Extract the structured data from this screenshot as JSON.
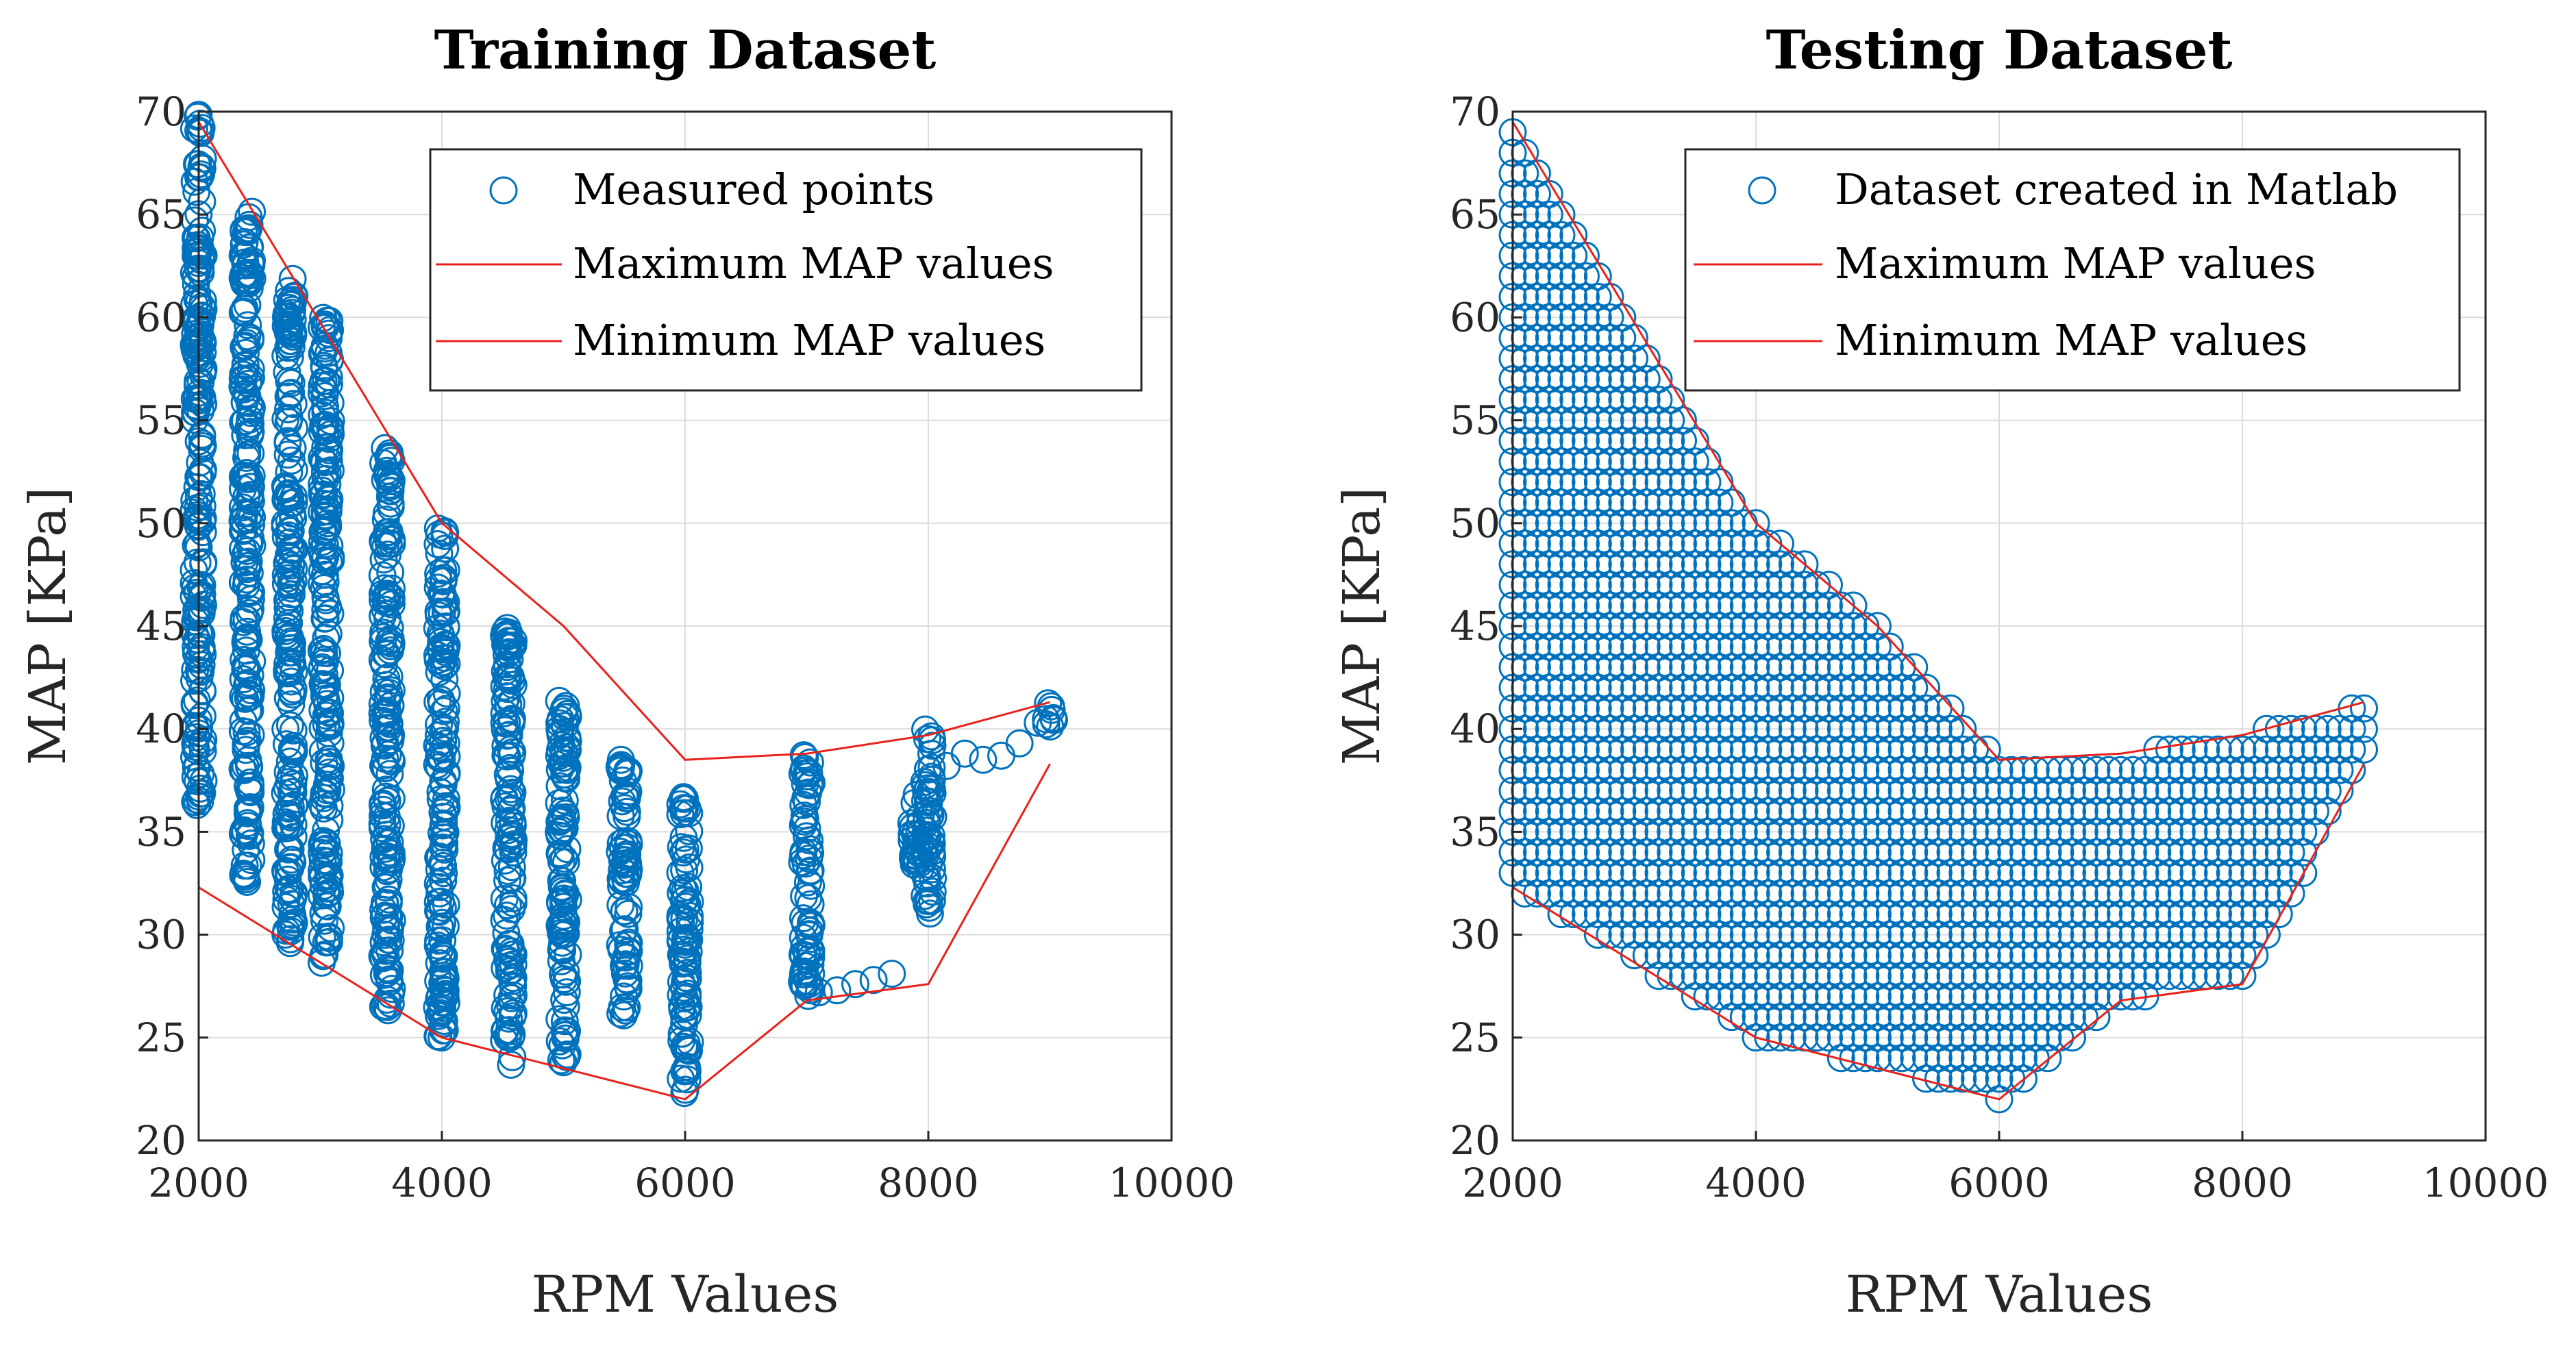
{
  "colors": {
    "marker": "#0072BD",
    "boundary": "#e8221a",
    "grid": "#dcdcdc",
    "axis": "#262626"
  },
  "chart_data": [
    {
      "type": "scatter",
      "title": "Training Dataset",
      "xlabel": "RPM Values",
      "ylabel": "MAP [KPa]",
      "xlim": [
        2000,
        10000
      ],
      "ylim": [
        20,
        70
      ],
      "xticks": [
        2000,
        4000,
        6000,
        8000,
        10000
      ],
      "yticks": [
        20,
        25,
        30,
        35,
        40,
        45,
        50,
        55,
        60,
        65,
        70
      ],
      "grid": true,
      "legend_position": "top-right",
      "legend": [
        "Measured points",
        "Maximum MAP values",
        "Minimum MAP values"
      ],
      "scatter_columns": [
        {
          "x": 2000,
          "y_min": 36,
          "y_max": 70
        },
        {
          "x": 2400,
          "y_min": 32.5,
          "y_max": 65.5
        },
        {
          "x": 2750,
          "y_min": 29.5,
          "y_max": 62
        },
        {
          "x": 3050,
          "y_min": 28.5,
          "y_max": 60
        },
        {
          "x": 3550,
          "y_min": 26,
          "y_max": 54
        },
        {
          "x": 4000,
          "y_min": 25,
          "y_max": 50
        },
        {
          "x": 4550,
          "y_min": 23.5,
          "y_max": 45
        },
        {
          "x": 5000,
          "y_min": 23.5,
          "y_max": 41.5
        },
        {
          "x": 5500,
          "y_min": 26,
          "y_max": 38.5
        },
        {
          "x": 6000,
          "y_min": 22,
          "y_max": 37
        },
        {
          "x": 7000,
          "y_min": 27,
          "y_max": 39
        },
        {
          "x": 7900,
          "y_min": 33,
          "y_max": 37
        },
        {
          "x": 8000,
          "y_min": 31,
          "y_max": 40
        },
        {
          "x": 9000,
          "y_min": 40,
          "y_max": 41.5
        }
      ],
      "scatter_points": [
        [
          7100,
          27.2
        ],
        [
          7250,
          27.3
        ],
        [
          7400,
          27.6
        ],
        [
          7550,
          27.8
        ],
        [
          7700,
          28.1
        ],
        [
          8150,
          38.2
        ],
        [
          8300,
          38.8
        ],
        [
          8450,
          38.5
        ],
        [
          8600,
          38.7
        ],
        [
          8750,
          39.3
        ],
        [
          8900,
          40.3
        ]
      ],
      "series": [
        {
          "name": "Maximum MAP values",
          "x": [
            2000,
            4000,
            5000,
            6000,
            7000,
            8000,
            9000
          ],
          "y": [
            69.5,
            50,
            45,
            38.5,
            38.8,
            39.7,
            41.3
          ]
        },
        {
          "name": "Minimum MAP values",
          "x": [
            2000,
            4000,
            6000,
            7000,
            8000,
            9000
          ],
          "y": [
            32.3,
            25,
            22,
            26.8,
            27.6,
            38.3
          ]
        }
      ]
    },
    {
      "type": "scatter",
      "title": "Testing Dataset",
      "xlabel": "RPM Values",
      "ylabel": "MAP [KPa]",
      "xlim": [
        2000,
        10000
      ],
      "ylim": [
        20,
        70
      ],
      "xticks": [
        2000,
        4000,
        6000,
        8000,
        10000
      ],
      "yticks": [
        20,
        25,
        30,
        35,
        40,
        45,
        50,
        55,
        60,
        65,
        70
      ],
      "grid": true,
      "legend_position": "top-right",
      "legend": [
        "Dataset created in Matlab",
        "Maximum MAP values",
        "Minimum MAP values"
      ],
      "grid_fill": {
        "x_step": 100,
        "y_step": 1
      },
      "series": [
        {
          "name": "Maximum MAP values",
          "x": [
            2000,
            4000,
            5000,
            6000,
            7000,
            8000,
            9000
          ],
          "y": [
            69.5,
            50,
            45,
            38.5,
            38.8,
            39.7,
            41.3
          ]
        },
        {
          "name": "Minimum MAP values",
          "x": [
            2000,
            4000,
            6000,
            7000,
            8000,
            9000
          ],
          "y": [
            32.3,
            25,
            22,
            26.8,
            27.6,
            38.3
          ]
        }
      ]
    }
  ]
}
